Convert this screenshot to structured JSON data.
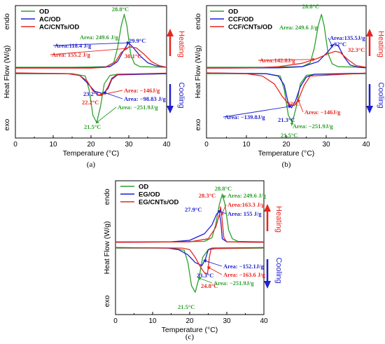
{
  "colors": {
    "od": "#2ca02c",
    "ac": "#1f1fcf",
    "cnt": "#e8261f",
    "heating": "#e8261f",
    "cooling": "#1f1fcf",
    "axis": "#000000"
  },
  "chart_data": [
    {
      "type": "line",
      "panel_label": "(a)",
      "xlabel": "Temperature (°C)",
      "ylabel": "Heat Flow (W/g)",
      "ylabel_top": "endo",
      "ylabel_bottom": "exo",
      "xlim": [
        0,
        40
      ],
      "xticks": [
        "0",
        "10",
        "20",
        "30",
        "40"
      ],
      "legend_position": "top-left",
      "heating_label": "Heating",
      "cooling_label": "Cooling",
      "series": [
        {
          "name": "OD",
          "color_key": "od",
          "heating": [
            [
              0,
              0.02
            ],
            [
              15,
              0.02
            ],
            [
              24,
              0.03
            ],
            [
              26,
              0.1
            ],
            [
              27,
              0.35
            ],
            [
              28,
              0.75
            ],
            [
              28.8,
              0.95
            ],
            [
              29.5,
              0.75
            ],
            [
              30.5,
              0.25
            ],
            [
              31.5,
              0.08
            ],
            [
              33,
              0.03
            ],
            [
              40,
              0.02
            ]
          ],
          "cooling": [
            [
              0,
              -0.02
            ],
            [
              15,
              -0.02
            ],
            [
              18.5,
              -0.06
            ],
            [
              19.5,
              -0.3
            ],
            [
              20.5,
              -0.75
            ],
            [
              21.5,
              -0.88
            ],
            [
              22.5,
              -0.6
            ],
            [
              23.5,
              -0.2
            ],
            [
              25,
              -0.05
            ],
            [
              27,
              -0.03
            ],
            [
              40,
              -0.02
            ]
          ]
        },
        {
          "name": "AC/OD",
          "color_key": "ac",
          "heating": [
            [
              0,
              0.01
            ],
            [
              20,
              0.01
            ],
            [
              25,
              0.03
            ],
            [
              27,
              0.12
            ],
            [
              28.5,
              0.3
            ],
            [
              29.9,
              0.45
            ],
            [
              31,
              0.38
            ],
            [
              33,
              0.22
            ],
            [
              35,
              0.1
            ],
            [
              37,
              0.05
            ],
            [
              40,
              0.02
            ]
          ],
          "cooling": [
            [
              0,
              -0.01
            ],
            [
              14,
              -0.02
            ],
            [
              17,
              -0.05
            ],
            [
              19,
              -0.18
            ],
            [
              21,
              -0.33
            ],
            [
              23.2,
              -0.37
            ],
            [
              24.5,
              -0.28
            ],
            [
              25.5,
              -0.12
            ],
            [
              27,
              -0.04
            ],
            [
              40,
              -0.02
            ]
          ]
        },
        {
          "name": "AC/CNTs/OD",
          "color_key": "cnt",
          "heating": [
            [
              0,
              0.005
            ],
            [
              20,
              0.005
            ],
            [
              24,
              0.02
            ],
            [
              26.5,
              0.12
            ],
            [
              28,
              0.28
            ],
            [
              30.1,
              0.38
            ],
            [
              32,
              0.36
            ],
            [
              34,
              0.25
            ],
            [
              36,
              0.12
            ],
            [
              38,
              0.05
            ],
            [
              40,
              0.02
            ]
          ],
          "cooling": [
            [
              0,
              -0.005
            ],
            [
              14,
              -0.02
            ],
            [
              17,
              -0.05
            ],
            [
              19,
              -0.15
            ],
            [
              20.5,
              -0.32
            ],
            [
              22.2,
              -0.4
            ],
            [
              23.5,
              -0.36
            ],
            [
              24.5,
              -0.25
            ],
            [
              25.5,
              -0.1
            ],
            [
              27,
              -0.03
            ],
            [
              40,
              -0.01
            ]
          ]
        }
      ],
      "annotations": [
        {
          "text": "28.8°C",
          "color_key": "od"
        },
        {
          "text": "Area: 249.6 J/g",
          "color_key": "od"
        },
        {
          "text": "Area:118.4 J/g",
          "color_key": "ac"
        },
        {
          "text": "29.9°C",
          "color_key": "ac"
        },
        {
          "text": "Area: 155.2 J/g",
          "color_key": "cnt"
        },
        {
          "text": "30.1°C",
          "color_key": "cnt"
        },
        {
          "text": "Area: −146J/g",
          "color_key": "cnt"
        },
        {
          "text": "23.2°C",
          "color_key": "ac"
        },
        {
          "text": "Area: −98.83 J/g",
          "color_key": "ac"
        },
        {
          "text": "22.2°C",
          "color_key": "cnt"
        },
        {
          "text": "Area: −251.9J/g",
          "color_key": "od"
        },
        {
          "text": "21.5°C",
          "color_key": "od"
        }
      ]
    },
    {
      "type": "line",
      "panel_label": "(b)",
      "xlabel": "Temperature (°C)",
      "ylabel": "Heat Flow (W/g)",
      "ylabel_top": "endo",
      "ylabel_bottom": "exo",
      "xlim": [
        0,
        40
      ],
      "xticks": [
        "0",
        "10",
        "20",
        "30",
        "40"
      ],
      "legend_position": "top-left",
      "heating_label": "Heating",
      "cooling_label": "Cooling",
      "series": [
        {
          "name": "OD",
          "color_key": "od",
          "heating": [
            [
              0,
              0.02
            ],
            [
              15,
              0.02
            ],
            [
              24,
              0.03
            ],
            [
              26,
              0.1
            ],
            [
              27,
              0.35
            ],
            [
              28,
              0.75
            ],
            [
              28.8,
              0.95
            ],
            [
              29.5,
              0.75
            ],
            [
              30.5,
              0.25
            ],
            [
              31.5,
              0.08
            ],
            [
              33,
              0.03
            ],
            [
              40,
              0.02
            ]
          ],
          "cooling": [
            [
              0,
              -0.02
            ],
            [
              15,
              -0.02
            ],
            [
              18.5,
              -0.06
            ],
            [
              19.5,
              -0.3
            ],
            [
              20.5,
              -0.75
            ],
            [
              21.5,
              -0.88
            ],
            [
              22.5,
              -0.6
            ],
            [
              23.5,
              -0.2
            ],
            [
              25,
              -0.05
            ],
            [
              27,
              -0.03
            ],
            [
              40,
              -0.02
            ]
          ]
        },
        {
          "name": "CCF/OD",
          "color_key": "ac",
          "heating": [
            [
              0,
              0.005
            ],
            [
              18,
              0.01
            ],
            [
              24,
              0.03
            ],
            [
              28,
              0.12
            ],
            [
              30.5,
              0.3
            ],
            [
              32,
              0.43
            ],
            [
              33,
              0.4
            ],
            [
              34.5,
              0.2
            ],
            [
              36,
              0.06
            ],
            [
              38,
              0.02
            ],
            [
              40,
              0.01
            ]
          ],
          "cooling": [
            [
              0,
              -0.005
            ],
            [
              15,
              -0.02
            ],
            [
              18,
              -0.06
            ],
            [
              19.5,
              -0.22
            ],
            [
              20.5,
              -0.55
            ],
            [
              21.3,
              -0.62
            ],
            [
              22.3,
              -0.5
            ],
            [
              23.5,
              -0.25
            ],
            [
              25,
              -0.08
            ],
            [
              27,
              -0.03
            ],
            [
              40,
              -0.01
            ]
          ]
        },
        {
          "name": "CCF/CNTs/OD",
          "color_key": "cnt",
          "heating": [
            [
              0,
              0.005
            ],
            [
              12,
              0.01
            ],
            [
              18,
              0.03
            ],
            [
              24,
              0.09
            ],
            [
              28,
              0.18
            ],
            [
              30.5,
              0.26
            ],
            [
              32.3,
              0.3
            ],
            [
              33.5,
              0.28
            ],
            [
              35.5,
              0.15
            ],
            [
              37.5,
              0.05
            ],
            [
              40,
              0.02
            ]
          ],
          "cooling": [
            [
              0,
              -0.005
            ],
            [
              10,
              -0.02
            ],
            [
              14,
              -0.06
            ],
            [
              17,
              -0.2
            ],
            [
              19,
              -0.42
            ],
            [
              20.5,
              -0.55
            ],
            [
              22,
              -0.58
            ],
            [
              23,
              -0.48
            ],
            [
              24.5,
              -0.22
            ],
            [
              26,
              -0.06
            ],
            [
              40,
              -0.01
            ]
          ]
        }
      ],
      "annotations": [
        {
          "text": "28.8°C",
          "color_key": "od"
        },
        {
          "text": "Area: 249.6 J/g",
          "color_key": "od"
        },
        {
          "text": "Area:135.5J/g",
          "color_key": "ac"
        },
        {
          "text": "32°C",
          "color_key": "ac"
        },
        {
          "text": "32.3°C",
          "color_key": "cnt"
        },
        {
          "text": "Area:142.8J/g",
          "color_key": "cnt"
        },
        {
          "text": "22°C",
          "color_key": "cnt"
        },
        {
          "text": "Area: −146J/g",
          "color_key": "cnt"
        },
        {
          "text": "Area: −139.8J/g",
          "color_key": "ac"
        },
        {
          "text": "21.3°C",
          "color_key": "ac"
        },
        {
          "text": "Area: −251.9J/g",
          "color_key": "od"
        },
        {
          "text": "21.5°C",
          "color_key": "od"
        }
      ]
    },
    {
      "type": "line",
      "panel_label": "(c)",
      "xlabel": "Temperature (°C)",
      "ylabel": "Heat Flow (W/g)",
      "ylabel_top": "endo",
      "ylabel_bottom": "exo",
      "xlim": [
        0,
        40
      ],
      "xticks": [
        "0",
        "10",
        "20",
        "30",
        "40"
      ],
      "legend_position": "top-left",
      "heating_label": "Heating",
      "cooling_label": "Cooling",
      "series": [
        {
          "name": "OD",
          "color_key": "od",
          "heating": [
            [
              0,
              0.02
            ],
            [
              15,
              0.02
            ],
            [
              24,
              0.03
            ],
            [
              26,
              0.1
            ],
            [
              27,
              0.35
            ],
            [
              28,
              0.75
            ],
            [
              28.8,
              0.95
            ],
            [
              29.5,
              0.75
            ],
            [
              30.5,
              0.25
            ],
            [
              31.5,
              0.08
            ],
            [
              33,
              0.03
            ],
            [
              40,
              0.02
            ]
          ],
          "cooling": [
            [
              0,
              -0.02
            ],
            [
              15,
              -0.02
            ],
            [
              18.5,
              -0.06
            ],
            [
              19.5,
              -0.3
            ],
            [
              20.5,
              -0.75
            ],
            [
              21.5,
              -0.88
            ],
            [
              22.5,
              -0.6
            ],
            [
              23.5,
              -0.2
            ],
            [
              25,
              -0.05
            ],
            [
              27,
              -0.03
            ],
            [
              40,
              -0.02
            ]
          ]
        },
        {
          "name": "EG/OD",
          "color_key": "ac",
          "heating": [
            [
              0,
              0.01
            ],
            [
              15,
              0.02
            ],
            [
              20,
              0.05
            ],
            [
              24,
              0.18
            ],
            [
              26,
              0.35
            ],
            [
              27.2,
              0.55
            ],
            [
              27.9,
              0.62
            ],
            [
              28.4,
              0.4
            ],
            [
              28.8,
              0.08
            ],
            [
              30,
              0.02
            ],
            [
              40,
              0.01
            ]
          ],
          "cooling": [
            [
              0,
              -0.01
            ],
            [
              14,
              -0.02
            ],
            [
              17,
              -0.05
            ],
            [
              19.5,
              -0.15
            ],
            [
              21.5,
              -0.3
            ],
            [
              23.3,
              -0.36
            ],
            [
              24.3,
              -0.22
            ],
            [
              25,
              -0.05
            ],
            [
              26,
              -0.02
            ],
            [
              40,
              -0.01
            ]
          ]
        },
        {
          "name": "EG/CNTs/OD",
          "color_key": "cnt",
          "heating": [
            [
              0,
              0.01
            ],
            [
              20,
              0.02
            ],
            [
              25,
              0.08
            ],
            [
              27,
              0.3
            ],
            [
              28,
              0.55
            ],
            [
              28.3,
              0.7
            ],
            [
              28.6,
              0.55
            ],
            [
              29.2,
              0.1
            ],
            [
              30,
              0.02
            ],
            [
              40,
              0.01
            ]
          ],
          "cooling": [
            [
              0,
              -0.01
            ],
            [
              18,
              -0.02
            ],
            [
              20,
              -0.05
            ],
            [
              21.5,
              -0.2
            ],
            [
              23,
              -0.4
            ],
            [
              24,
              -0.5
            ],
            [
              24.8,
              -0.52
            ],
            [
              25.3,
              -0.2
            ],
            [
              25.8,
              -0.03
            ],
            [
              40,
              -0.01
            ]
          ]
        }
      ],
      "annotations": [
        {
          "text": "28.8°C",
          "color_key": "od"
        },
        {
          "text": "28.3°C",
          "color_key": "cnt"
        },
        {
          "text": "Area: 249.6 J/g",
          "color_key": "od"
        },
        {
          "text": "Area:163.3 J/g",
          "color_key": "cnt"
        },
        {
          "text": "27.9°C",
          "color_key": "ac"
        },
        {
          "text": "Area: 155 J/g",
          "color_key": "ac"
        },
        {
          "text": "Area: −152.1J/g",
          "color_key": "ac"
        },
        {
          "text": "Area: −163.6 J/g",
          "color_key": "cnt"
        },
        {
          "text": "23.3°C",
          "color_key": "ac"
        },
        {
          "text": "24.8°C",
          "color_key": "cnt"
        },
        {
          "text": "Area: −251.9J/g",
          "color_key": "od"
        },
        {
          "text": "21.5°C",
          "color_key": "od"
        }
      ]
    }
  ]
}
